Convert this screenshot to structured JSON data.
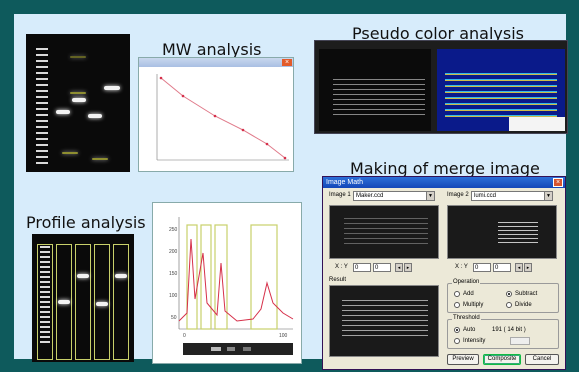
{
  "captions": {
    "mw": "MW analysis",
    "pseudo": "Pseudo color analysis",
    "merge": "Making of merge image",
    "profile": "Profile analysis"
  },
  "mw_window": {
    "close_icon": "close-icon"
  },
  "profile_window": {
    "y_ticks": [
      "250",
      "200",
      "150",
      "100",
      "50"
    ],
    "x_ticks": [
      "0",
      "100"
    ]
  },
  "image_math": {
    "title": "Image Math",
    "image1_label": "Image 1",
    "image1_value": "Maker.ccd",
    "image2_label": "Image 2",
    "image2_value": "lumi.ccd",
    "xy_label": "X : Y",
    "x1": "0",
    "y1": "0",
    "x2": "0",
    "y2": "0",
    "result_label": "Result",
    "operation_label": "Operation",
    "op_add": "Add",
    "op_subtract": "Subtract",
    "op_multiply": "Multiply",
    "op_divide": "Divide",
    "threshold_label": "Threshold",
    "th_auto": "Auto",
    "th_value": "191 ( 14 bit )",
    "th_intensity": "Intensity",
    "preview": "Preview",
    "composite": "Composite",
    "cancel": "Cancel"
  },
  "colors": {
    "frame": "#0e5a5c",
    "panel": "#d7ecfb",
    "curve": "#d6304a",
    "highlight": "#c8d06a"
  }
}
